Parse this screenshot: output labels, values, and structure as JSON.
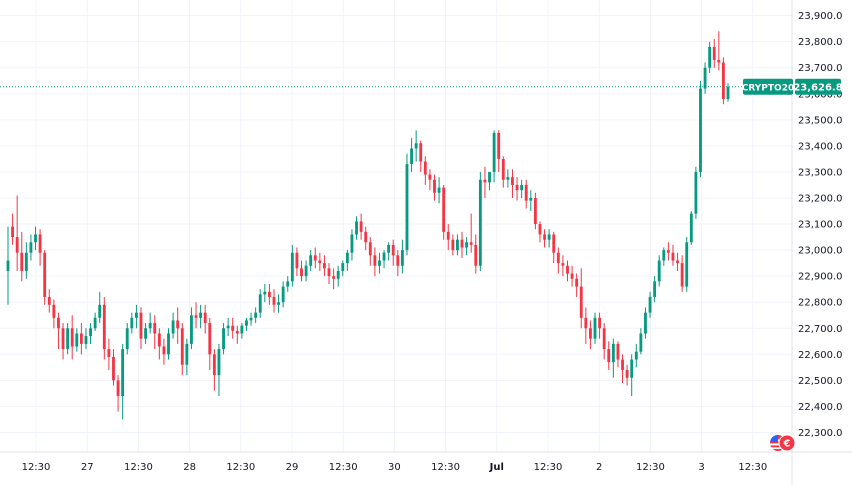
{
  "chart_data": {
    "type": "candlestick",
    "symbol": "CRYPTO20",
    "last_price": 23626.8,
    "last_price_label": "23,626.8",
    "y_range": [
      22225,
      23960
    ],
    "y_ticks": [
      "23,900.0",
      "23,800.0",
      "23,700.0",
      "23,600.0",
      "23,500.0",
      "23,400.0",
      "23,300.0",
      "23,200.0",
      "23,100.0",
      "23,000.0",
      "22,900.0",
      "22,800.0",
      "22,700.0",
      "22,600.0",
      "22,500.0",
      "22,400.0",
      "22,300.0"
    ],
    "x_ticks": [
      {
        "label": "12:30",
        "bold": false
      },
      {
        "label": "27",
        "bold": false
      },
      {
        "label": "12:30",
        "bold": false
      },
      {
        "label": "28",
        "bold": false
      },
      {
        "label": "12:30",
        "bold": false
      },
      {
        "label": "29",
        "bold": false
      },
      {
        "label": "12:30",
        "bold": false
      },
      {
        "label": "30",
        "bold": false
      },
      {
        "label": "12:30",
        "bold": false
      },
      {
        "label": "Jul",
        "bold": true
      },
      {
        "label": "12:30",
        "bold": false
      },
      {
        "label": "2",
        "bold": false
      },
      {
        "label": "12:30",
        "bold": false
      },
      {
        "label": "3",
        "bold": false
      },
      {
        "label": "12:30",
        "bold": false
      }
    ],
    "colors": {
      "up": "#089981",
      "down": "#f23645",
      "price_line": "#089981",
      "grid": "#f0f3fa"
    },
    "candles": [
      [
        22920,
        23090,
        22960,
        22790
      ],
      [
        23090,
        23140,
        23050,
        23020
      ],
      [
        23050,
        23210,
        22990,
        22920
      ],
      [
        22990,
        23070,
        22920,
        22880
      ],
      [
        22920,
        23030,
        22990,
        22890
      ],
      [
        22990,
        23060,
        23030,
        22960
      ],
      [
        23030,
        23090,
        23060,
        23000
      ],
      [
        23060,
        23080,
        22990,
        22940
      ],
      [
        22990,
        23000,
        22820,
        22790
      ],
      [
        22820,
        22850,
        22790,
        22760
      ],
      [
        22790,
        22810,
        22740,
        22700
      ],
      [
        22740,
        22760,
        22700,
        22620
      ],
      [
        22700,
        22720,
        22620,
        22580
      ],
      [
        22620,
        22720,
        22700,
        22600
      ],
      [
        22700,
        22750,
        22630,
        22580
      ],
      [
        22630,
        22700,
        22680,
        22610
      ],
      [
        22680,
        22720,
        22640,
        22600
      ],
      [
        22640,
        22700,
        22670,
        22620
      ],
      [
        22670,
        22720,
        22700,
        22640
      ],
      [
        22700,
        22760,
        22740,
        22690
      ],
      [
        22740,
        22840,
        22790,
        22720
      ],
      [
        22790,
        22820,
        22620,
        22580
      ],
      [
        22620,
        22660,
        22590,
        22540
      ],
      [
        22590,
        22620,
        22500,
        22480
      ],
      [
        22500,
        22520,
        22440,
        22380
      ],
      [
        22440,
        22640,
        22620,
        22350
      ],
      [
        22620,
        22720,
        22700,
        22600
      ],
      [
        22700,
        22760,
        22740,
        22680
      ],
      [
        22740,
        22790,
        22760,
        22700
      ],
      [
        22760,
        22780,
        22660,
        22620
      ],
      [
        22660,
        22720,
        22700,
        22640
      ],
      [
        22700,
        22760,
        22720,
        22680
      ],
      [
        22720,
        22750,
        22680,
        22620
      ],
      [
        22680,
        22700,
        22630,
        22580
      ],
      [
        22630,
        22660,
        22600,
        22560
      ],
      [
        22600,
        22700,
        22680,
        22580
      ],
      [
        22680,
        22760,
        22730,
        22660
      ],
      [
        22730,
        22780,
        22700,
        22640
      ],
      [
        22700,
        22720,
        22560,
        22520
      ],
      [
        22560,
        22660,
        22640,
        22520
      ],
      [
        22640,
        22780,
        22750,
        22620
      ],
      [
        22750,
        22800,
        22740,
        22700
      ],
      [
        22740,
        22790,
        22760,
        22700
      ],
      [
        22760,
        22790,
        22720,
        22680
      ],
      [
        22720,
        22740,
        22600,
        22540
      ],
      [
        22600,
        22620,
        22520,
        22460
      ],
      [
        22520,
        22640,
        22620,
        22440
      ],
      [
        22620,
        22720,
        22700,
        22600
      ],
      [
        22700,
        22740,
        22710,
        22670
      ],
      [
        22710,
        22740,
        22690,
        22660
      ],
      [
        22690,
        22710,
        22680,
        22640
      ],
      [
        22680,
        22720,
        22710,
        22660
      ],
      [
        22710,
        22740,
        22730,
        22690
      ],
      [
        22730,
        22760,
        22740,
        22710
      ],
      [
        22740,
        22780,
        22760,
        22720
      ],
      [
        22760,
        22850,
        22830,
        22740
      ],
      [
        22830,
        22870,
        22840,
        22800
      ],
      [
        22840,
        22870,
        22820,
        22790
      ],
      [
        22820,
        22850,
        22790,
        22760
      ],
      [
        22790,
        22830,
        22800,
        22760
      ],
      [
        22800,
        22880,
        22860,
        22780
      ],
      [
        22860,
        22900,
        22880,
        22840
      ],
      [
        22880,
        23020,
        22990,
        22860
      ],
      [
        22990,
        23010,
        22930,
        22900
      ],
      [
        22930,
        22960,
        22900,
        22880
      ],
      [
        22900,
        22960,
        22940,
        22880
      ],
      [
        22940,
        23000,
        22980,
        22920
      ],
      [
        22980,
        23010,
        22960,
        22930
      ],
      [
        22960,
        22990,
        22950,
        22920
      ],
      [
        22950,
        22980,
        22930,
        22900
      ],
      [
        22930,
        22950,
        22900,
        22870
      ],
      [
        22900,
        22930,
        22890,
        22850
      ],
      [
        22890,
        22940,
        22920,
        22860
      ],
      [
        22920,
        22960,
        22950,
        22900
      ],
      [
        22950,
        23000,
        22990,
        22920
      ],
      [
        22990,
        23080,
        23060,
        22960
      ],
      [
        23060,
        23130,
        23110,
        23040
      ],
      [
        23110,
        23140,
        23070,
        23040
      ],
      [
        23070,
        23090,
        23030,
        23000
      ],
      [
        23030,
        23050,
        22980,
        22940
      ],
      [
        22980,
        23010,
        22940,
        22900
      ],
      [
        22940,
        22990,
        22960,
        22910
      ],
      [
        22960,
        23000,
        22990,
        22930
      ],
      [
        22990,
        23030,
        23020,
        22960
      ],
      [
        23020,
        23040,
        22980,
        22940
      ],
      [
        22980,
        23000,
        22940,
        22900
      ],
      [
        22940,
        23040,
        23000,
        22910
      ],
      [
        23000,
        23370,
        23330,
        22980
      ],
      [
        23330,
        23430,
        23390,
        23300
      ],
      [
        23390,
        23460,
        23410,
        23340
      ],
      [
        23410,
        23420,
        23340,
        23300
      ],
      [
        23340,
        23360,
        23290,
        23250
      ],
      [
        23290,
        23310,
        23270,
        23230
      ],
      [
        23270,
        23290,
        23220,
        23190
      ],
      [
        23220,
        23280,
        23240,
        23180
      ],
      [
        23240,
        23250,
        23070,
        23040
      ],
      [
        23070,
        23100,
        23040,
        23000
      ],
      [
        23040,
        23060,
        23000,
        22980
      ],
      [
        23000,
        23060,
        23040,
        22980
      ],
      [
        23040,
        23070,
        23010,
        22970
      ],
      [
        23010,
        23050,
        23030,
        22980
      ],
      [
        23030,
        23140,
        23020,
        22990
      ],
      [
        23020,
        23060,
        22940,
        22910
      ],
      [
        22940,
        23300,
        23270,
        22920
      ],
      [
        23270,
        23320,
        23260,
        23200
      ],
      [
        23260,
        23300,
        23300,
        23230
      ],
      [
        23300,
        23460,
        23450,
        23260
      ],
      [
        23450,
        23460,
        23350,
        23300
      ],
      [
        23350,
        23360,
        23270,
        23240
      ],
      [
        23270,
        23310,
        23280,
        23240
      ],
      [
        23280,
        23310,
        23250,
        23200
      ],
      [
        23250,
        23280,
        23230,
        23190
      ],
      [
        23230,
        23270,
        23250,
        23200
      ],
      [
        23250,
        23270,
        23190,
        23160
      ],
      [
        23190,
        23230,
        23200,
        23150
      ],
      [
        23200,
        23220,
        23100,
        23080
      ],
      [
        23100,
        23110,
        23060,
        23030
      ],
      [
        23060,
        23080,
        23040,
        23010
      ],
      [
        23040,
        23080,
        23060,
        23010
      ],
      [
        23060,
        23070,
        22990,
        22950
      ],
      [
        22990,
        23010,
        22950,
        22910
      ],
      [
        22950,
        22980,
        22940,
        22900
      ],
      [
        22940,
        22960,
        22910,
        22880
      ],
      [
        22910,
        22940,
        22890,
        22860
      ],
      [
        22890,
        22910,
        22860,
        22820
      ],
      [
        22860,
        22930,
        22740,
        22700
      ],
      [
        22740,
        22780,
        22700,
        22640
      ],
      [
        22700,
        22730,
        22660,
        22620
      ],
      [
        22660,
        22760,
        22740,
        22640
      ],
      [
        22740,
        22760,
        22700,
        22660
      ],
      [
        22700,
        22720,
        22620,
        22580
      ],
      [
        22620,
        22650,
        22570,
        22540
      ],
      [
        22570,
        22660,
        22640,
        22510
      ],
      [
        22640,
        22650,
        22580,
        22550
      ],
      [
        22580,
        22600,
        22540,
        22490
      ],
      [
        22540,
        22560,
        22510,
        22480
      ],
      [
        22510,
        22600,
        22580,
        22440
      ],
      [
        22580,
        22640,
        22610,
        22550
      ],
      [
        22610,
        22700,
        22680,
        22600
      ],
      [
        22680,
        22780,
        22760,
        22660
      ],
      [
        22760,
        22840,
        22820,
        22740
      ],
      [
        22820,
        22900,
        22880,
        22800
      ],
      [
        22880,
        22980,
        22960,
        22860
      ],
      [
        22960,
        23010,
        23000,
        22940
      ],
      [
        23000,
        23030,
        22990,
        22960
      ],
      [
        22990,
        23020,
        22960,
        22940
      ],
      [
        22960,
        22990,
        22950,
        22920
      ],
      [
        22950,
        22980,
        22860,
        22840
      ],
      [
        22860,
        23050,
        23030,
        22840
      ],
      [
        23030,
        23150,
        23140,
        23020
      ],
      [
        23140,
        23320,
        23300,
        23120
      ],
      [
        23300,
        23650,
        23620,
        23280
      ],
      [
        23620,
        23720,
        23700,
        23600
      ],
      [
        23700,
        23800,
        23780,
        23680
      ],
      [
        23780,
        23810,
        23730,
        23700
      ],
      [
        23730,
        23840,
        23720,
        23690
      ],
      [
        23720,
        23740,
        23580,
        23560
      ],
      [
        23580,
        23640,
        23626.8,
        23570
      ]
    ]
  }
}
